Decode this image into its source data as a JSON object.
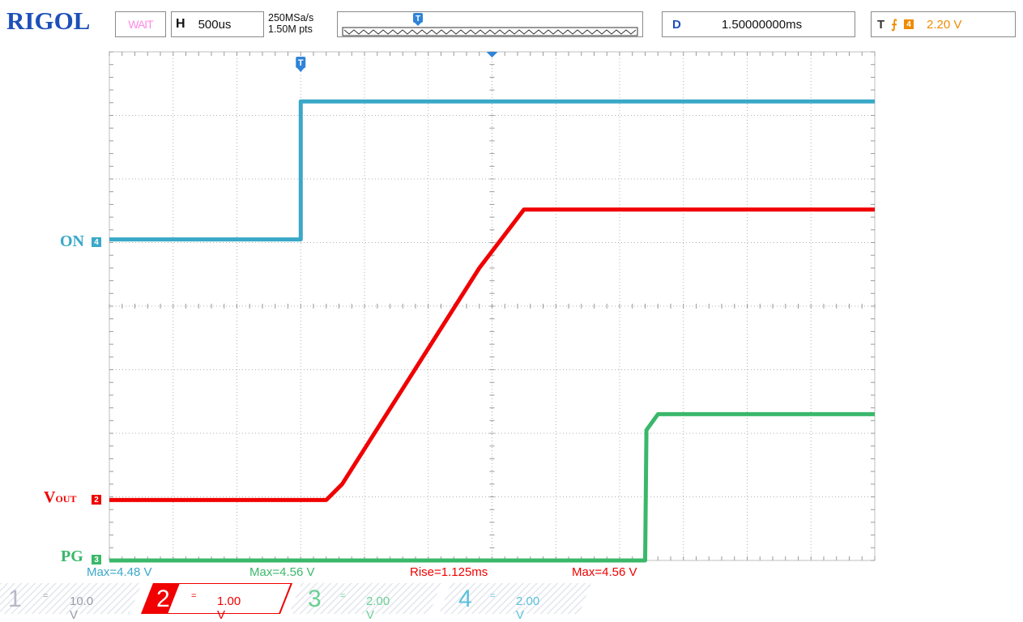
{
  "header": {
    "brand": "RIGOL",
    "run_state": "WAIT",
    "horizontal_label": "H",
    "timebase": "500us",
    "sample_rate": "250MSa/s",
    "memory_depth": "1.50M pts",
    "delay_label": "D",
    "delay_value": "1.50000000ms",
    "trigger_label": "T",
    "trigger_source": "4",
    "trigger_level": "2.20 V",
    "trigger_marker": "T"
  },
  "channels": [
    {
      "number": "1",
      "coupling": "=",
      "scale": "10.0 V",
      "color": "#b8b8c8",
      "active": false
    },
    {
      "number": "2",
      "coupling": "=",
      "scale": "1.00 V",
      "color": "#f00000",
      "active": true
    },
    {
      "number": "3",
      "coupling": "=",
      "scale": "2.00 V",
      "color": "#3ab86a",
      "active": false
    },
    {
      "number": "4",
      "coupling": "=",
      "scale": "2.00 V",
      "color": "#3aa8c8",
      "active": false
    }
  ],
  "measurements": [
    {
      "text": "Max=4.48 V",
      "color": "#3aa8c8"
    },
    {
      "text": "Max=4.56 V",
      "color": "#3ab86a"
    },
    {
      "text": "Rise=1.125ms",
      "color": "#f00000"
    },
    {
      "text": "Max=4.56 V",
      "color": "#f00000"
    }
  ],
  "chart_data": {
    "type": "line",
    "title": "",
    "xlabel": "",
    "ylabel": "",
    "x_unit": "div",
    "y_unit": "div",
    "xlim": [
      -6,
      6
    ],
    "ylim": [
      -4,
      4
    ],
    "grid": true,
    "series": [
      {
        "name": "ON",
        "label_main": "ON",
        "label_sub": "",
        "channel": "4",
        "color": "#3aa8c8",
        "x": [
          -6,
          -3,
          -3,
          6
        ],
        "y": [
          1.05,
          1.05,
          3.22,
          3.22
        ]
      },
      {
        "name": "VOUT",
        "label_main": "V",
        "label_sub": "OUT",
        "channel": "2",
        "color": "#f00000",
        "x": [
          -6,
          -2.6,
          -2.35,
          -0.2,
          0.5,
          6
        ],
        "y": [
          -3.05,
          -3.05,
          -2.8,
          0.6,
          1.52,
          1.52
        ]
      },
      {
        "name": "PG",
        "label_main": "PG",
        "label_sub": "",
        "channel": "3",
        "color": "#3ab86a",
        "x": [
          -6,
          2.4,
          2.42,
          2.6,
          6
        ],
        "y": [
          -4.0,
          -4.0,
          -1.95,
          -1.7,
          -1.7
        ]
      }
    ]
  }
}
